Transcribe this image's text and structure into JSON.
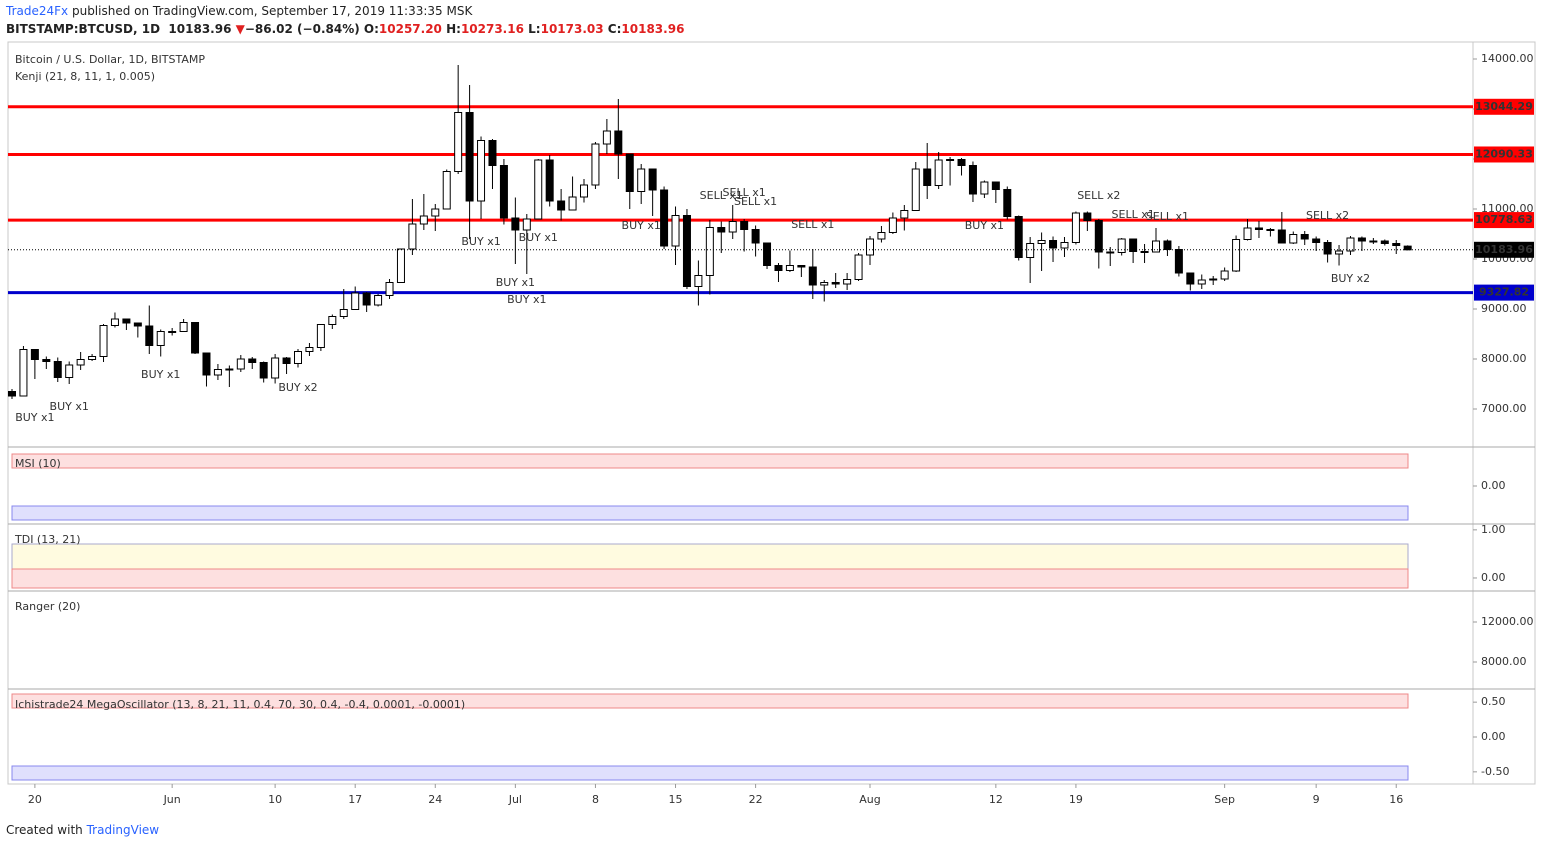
{
  "header": {
    "author": "Trade24Fx",
    "published": "published on TradingView.com, September 17, 2019 11:33:35 MSK",
    "symbol": "BITSTAMP:BTCUSD, 1D",
    "last": "10183.96",
    "arrow": "▼",
    "change": "−86.02 (−0.84%)",
    "ohlc": [
      {
        "key": "O:",
        "value": "10257.20"
      },
      {
        "key": "H:",
        "value": "10273.16"
      },
      {
        "key": "L:",
        "value": "10173.03"
      },
      {
        "key": "C:",
        "value": "10183.96"
      }
    ]
  },
  "footer": {
    "created": "Created with",
    "brand": "TradingView"
  },
  "chart_data": {
    "type": "candlestick",
    "title": "Bitcoin / U.S. Dollar, 1D, BITSTAMP",
    "subtitle": "Kenji (21, 8, 11, 1, 0.005)",
    "categories": [
      null,
      null,
      "20",
      null,
      null,
      null,
      null,
      null,
      null,
      null,
      null,
      null,
      null,
      null,
      "Jun",
      null,
      null,
      null,
      null,
      null,
      null,
      null,
      null,
      "10",
      null,
      null,
      null,
      null,
      null,
      null,
      "17",
      null,
      null,
      null,
      null,
      null,
      null,
      "24",
      null,
      null,
      null,
      null,
      null,
      null,
      "Jul",
      null,
      null,
      null,
      null,
      null,
      null,
      "8",
      null,
      null,
      null,
      null,
      null,
      null,
      "15",
      null,
      null,
      null,
      null,
      null,
      null,
      "22",
      null,
      null,
      null,
      null,
      null,
      null,
      null,
      null,
      null,
      "Aug",
      null,
      null,
      null,
      null,
      null,
      null,
      null,
      null,
      null,
      null,
      "12",
      null,
      null,
      null,
      null,
      null,
      null,
      "19",
      null,
      null,
      null,
      null,
      null,
      null,
      null,
      null,
      null,
      null,
      null,
      null,
      "Sep",
      null,
      null,
      null,
      null,
      null,
      null,
      null,
      "9",
      null,
      null,
      null,
      null,
      null,
      null,
      "16",
      null
    ],
    "open": [
      7350,
      7260,
      8190,
      7990,
      7950,
      7630,
      7880,
      7990,
      8050,
      8670,
      8800,
      8720,
      8660,
      8270,
      8550,
      8550,
      8730,
      8120,
      7680,
      7790,
      7800,
      8000,
      7930,
      7620,
      8020,
      7910,
      8150,
      8230,
      8690,
      8850,
      8990,
      9320,
      9080,
      9270,
      9530,
      10200,
      10700,
      10860,
      11000,
      11750,
      12930,
      11160,
      12370,
      11870,
      10820,
      10580,
      10800,
      11980,
      11160,
      10980,
      11240,
      11480,
      12300,
      12560,
      12100,
      11350,
      11800,
      11380,
      10260,
      10870,
      9450,
      9670,
      10630,
      10540,
      10750,
      10590,
      10320,
      9870,
      9770,
      9870,
      9840,
      9480,
      9530,
      9500,
      9590,
      10080,
      10400,
      10530,
      10820,
      10970,
      11800,
      11470,
      11980,
      11990,
      11870,
      11300,
      11540,
      11390,
      10850,
      10030,
      10310,
      10370,
      10220,
      10330,
      10920,
      10770,
      10140,
      10130,
      10400,
      10150,
      10140,
      10360,
      10190,
      9720,
      9500,
      9580,
      9600,
      9760,
      10390,
      10620,
      10590,
      10580,
      10320,
      10490,
      10400,
      10330,
      10100,
      10160,
      10420,
      10360,
      10360,
      10310,
      10257.2
    ],
    "high": [
      7400,
      8260,
      8200,
      8050,
      8030,
      7950,
      8140,
      8100,
      8700,
      8930,
      8800,
      8720,
      9070,
      8590,
      8620,
      8800,
      8740,
      8120,
      7900,
      7870,
      8080,
      8040,
      7950,
      8100,
      8040,
      8200,
      8320,
      8700,
      8890,
      9400,
      9450,
      9340,
      9300,
      9600,
      10210,
      11200,
      11300,
      11100,
      11790,
      13880,
      13480,
      12450,
      12400,
      12000,
      11230,
      10900,
      12000,
      12080,
      11400,
      11650,
      11600,
      12340,
      12800,
      13200,
      12100,
      11900,
      11800,
      11450,
      11050,
      11000,
      9970,
      10780,
      10750,
      11080,
      10800,
      10670,
      10320,
      9920,
      10170,
      9870,
      10200,
      9580,
      9720,
      9720,
      10120,
      10460,
      10660,
      10930,
      11080,
      11940,
      12320,
      12140,
      12040,
      12020,
      11950,
      11570,
      11540,
      11450,
      10870,
      10440,
      10530,
      10450,
      10440,
      10950,
      10950,
      10800,
      10240,
      10420,
      10400,
      10300,
      10620,
      10390,
      10260,
      9720,
      9690,
      9660,
      9830,
      10470,
      10800,
      10760,
      10620,
      10940,
      10550,
      10560,
      10450,
      10380,
      10280,
      10460,
      10450,
      10420,
      10390,
      10380,
      10273.16
    ],
    "low": [
      7200,
      7250,
      7600,
      7800,
      7540,
      7500,
      7780,
      7960,
      7940,
      8630,
      8580,
      8430,
      8100,
      8050,
      8470,
      8540,
      8100,
      7450,
      7580,
      7440,
      7740,
      7800,
      7530,
      7510,
      7700,
      7830,
      8060,
      8160,
      8600,
      8800,
      8980,
      8940,
      9050,
      9200,
      9530,
      10080,
      10580,
      10560,
      11000,
      11700,
      10400,
      10800,
      11400,
      10690,
      9900,
      9700,
      10800,
      11050,
      10770,
      10970,
      11130,
      11400,
      12100,
      11600,
      11000,
      11100,
      10860,
      10200,
      9880,
      9400,
      9070,
      9290,
      10120,
      10400,
      10150,
      10050,
      9800,
      9540,
      9740,
      9640,
      9200,
      9150,
      9420,
      9380,
      9560,
      9880,
      10330,
      10500,
      10570,
      10960,
      11200,
      11400,
      11470,
      11670,
      11140,
      11220,
      11120,
      10790,
      9970,
      9520,
      9760,
      9940,
      10040,
      10290,
      10560,
      9810,
      9860,
      10070,
      9920,
      9920,
      10140,
      10060,
      9650,
      9370,
      9400,
      9480,
      9560,
      9740,
      10370,
      10420,
      10450,
      10310,
      10300,
      10280,
      10160,
      9930,
      9870,
      10080,
      10160,
      10300,
      10270,
      10100,
      10173.03
    ],
    "close": [
      7260,
      8190,
      7990,
      7950,
      7630,
      7880,
      7990,
      8050,
      8670,
      8800,
      8720,
      8660,
      8270,
      8550,
      8550,
      8730,
      8120,
      7680,
      7790,
      7800,
      8000,
      7930,
      7620,
      8020,
      7910,
      8150,
      8230,
      8690,
      8850,
      8990,
      9320,
      9080,
      9270,
      9530,
      10200,
      10700,
      10860,
      11000,
      11750,
      12930,
      11160,
      12370,
      11870,
      10820,
      10580,
      10800,
      11980,
      11160,
      10980,
      11240,
      11480,
      12300,
      12560,
      12100,
      11350,
      11800,
      11380,
      10260,
      10870,
      9450,
      9670,
      10630,
      10540,
      10750,
      10590,
      10320,
      9870,
      9770,
      9870,
      9840,
      9480,
      9530,
      9500,
      9590,
      10080,
      10400,
      10530,
      10820,
      10970,
      11800,
      11470,
      11980,
      11990,
      11870,
      11300,
      11540,
      11390,
      10850,
      10030,
      10310,
      10370,
      10220,
      10330,
      10920,
      10770,
      10140,
      10130,
      10400,
      10150,
      10140,
      10360,
      10190,
      9720,
      9500,
      9580,
      9600,
      9760,
      10390,
      10620,
      10590,
      10580,
      10320,
      10490,
      10400,
      10330,
      10100,
      10160,
      10420,
      10360,
      10360,
      10310,
      10270,
      10183.96
    ],
    "ylim": [
      6260,
      14320
    ],
    "yticks": [
      {
        "value": 14000,
        "label": "14000.00"
      },
      {
        "value": 13000,
        "label": "13000.00"
      },
      {
        "value": 12000,
        "label": "12000.00"
      },
      {
        "value": 11000,
        "label": "11000.00"
      },
      {
        "value": 10000,
        "label": "10000.00"
      },
      {
        "value": 9000,
        "label": "9000.00"
      },
      {
        "value": 8000,
        "label": "8000.00"
      },
      {
        "value": 7000,
        "label": "7000.00"
      }
    ],
    "levels": [
      {
        "value": 13044.29,
        "color": "#ff0000"
      },
      {
        "value": 12090.33,
        "color": "#ff0000"
      },
      {
        "value": 10778.63,
        "color": "#ff0000"
      },
      {
        "value": 9327.82,
        "color": "#0000cc"
      }
    ],
    "annotations": [
      {
        "text": "BUY x1",
        "at": 2,
        "price": 6820,
        "color": "#5b5bd6"
      },
      {
        "text": "BUY x1",
        "at": 5,
        "price": 7040,
        "color": "#5b5bd6"
      },
      {
        "text": "BUY x1",
        "at": 13,
        "price": 7680,
        "color": "#5b5bd6"
      },
      {
        "text": "BUY x2",
        "at": 25,
        "price": 7420,
        "color": "#5b5bd6"
      },
      {
        "text": "BUY x1",
        "at": 41,
        "price": 10340,
        "color": "#5b5bd6"
      },
      {
        "text": "BUY x1",
        "at": 46,
        "price": 10420,
        "color": "#5b5bd6"
      },
      {
        "text": "BUY x1",
        "at": 44,
        "price": 9520,
        "color": "#5b5bd6"
      },
      {
        "text": "BUY x1",
        "at": 45,
        "price": 9180,
        "color": "#5b5bd6"
      },
      {
        "text": "BUY x1",
        "at": 55,
        "price": 10660,
        "color": "#5b5bd6"
      },
      {
        "text": "SELL x1",
        "at": 62,
        "price": 11260,
        "color": "#f06060"
      },
      {
        "text": "SELL x1",
        "at": 64,
        "price": 11320,
        "color": "#f06060"
      },
      {
        "text": "SELL x1",
        "at": 65,
        "price": 11140,
        "color": "#f06060"
      },
      {
        "text": "SELL x1",
        "at": 70,
        "price": 10680,
        "color": "#f06060"
      },
      {
        "text": "BUY x1",
        "at": 85,
        "price": 10660,
        "color": "#5b5bd6"
      },
      {
        "text": "SELL x2",
        "at": 95,
        "price": 11260,
        "color": "#f06060"
      },
      {
        "text": "SELL x1",
        "at": 98,
        "price": 10880,
        "color": "#f06060"
      },
      {
        "text": "SELL x1",
        "at": 101,
        "price": 10840,
        "color": "#f06060"
      },
      {
        "text": "SELL x2",
        "at": 115,
        "price": 10860,
        "color": "#f06060"
      },
      {
        "text": "BUY x2",
        "at": 117,
        "price": 9600,
        "color": "#5b5bd6"
      }
    ],
    "panes": [
      {
        "title": "MSI (10)",
        "ylim": [
          -1,
          1
        ],
        "yticks": [
          {
            "value": 0,
            "label": "0.00"
          }
        ]
      },
      {
        "title": "TDI (13, 21)",
        "ylim": [
          -0.25,
          1.08
        ],
        "yticks": [
          {
            "value": 1,
            "label": "1.00"
          },
          {
            "value": 0,
            "label": "0.00"
          }
        ]
      },
      {
        "title": "Ranger (20)",
        "ylim": [
          5400,
          14900
        ],
        "yticks": [
          {
            "value": 12000,
            "label": "12000.00"
          },
          {
            "value": 8000,
            "label": "8000.00"
          }
        ]
      },
      {
        "title": "Ichistrade24 MegaOscillator (13, 8, 21, 11, 0.4, 70, 30, 0.4, -0.4, 0.0001, -0.0001)",
        "ylim": [
          -0.66,
          0.66
        ],
        "yticks": [
          {
            "value": 0.5,
            "label": "0.50"
          },
          {
            "value": 0,
            "label": "0.00"
          },
          {
            "value": -0.5,
            "label": "-0.50"
          }
        ]
      }
    ]
  }
}
